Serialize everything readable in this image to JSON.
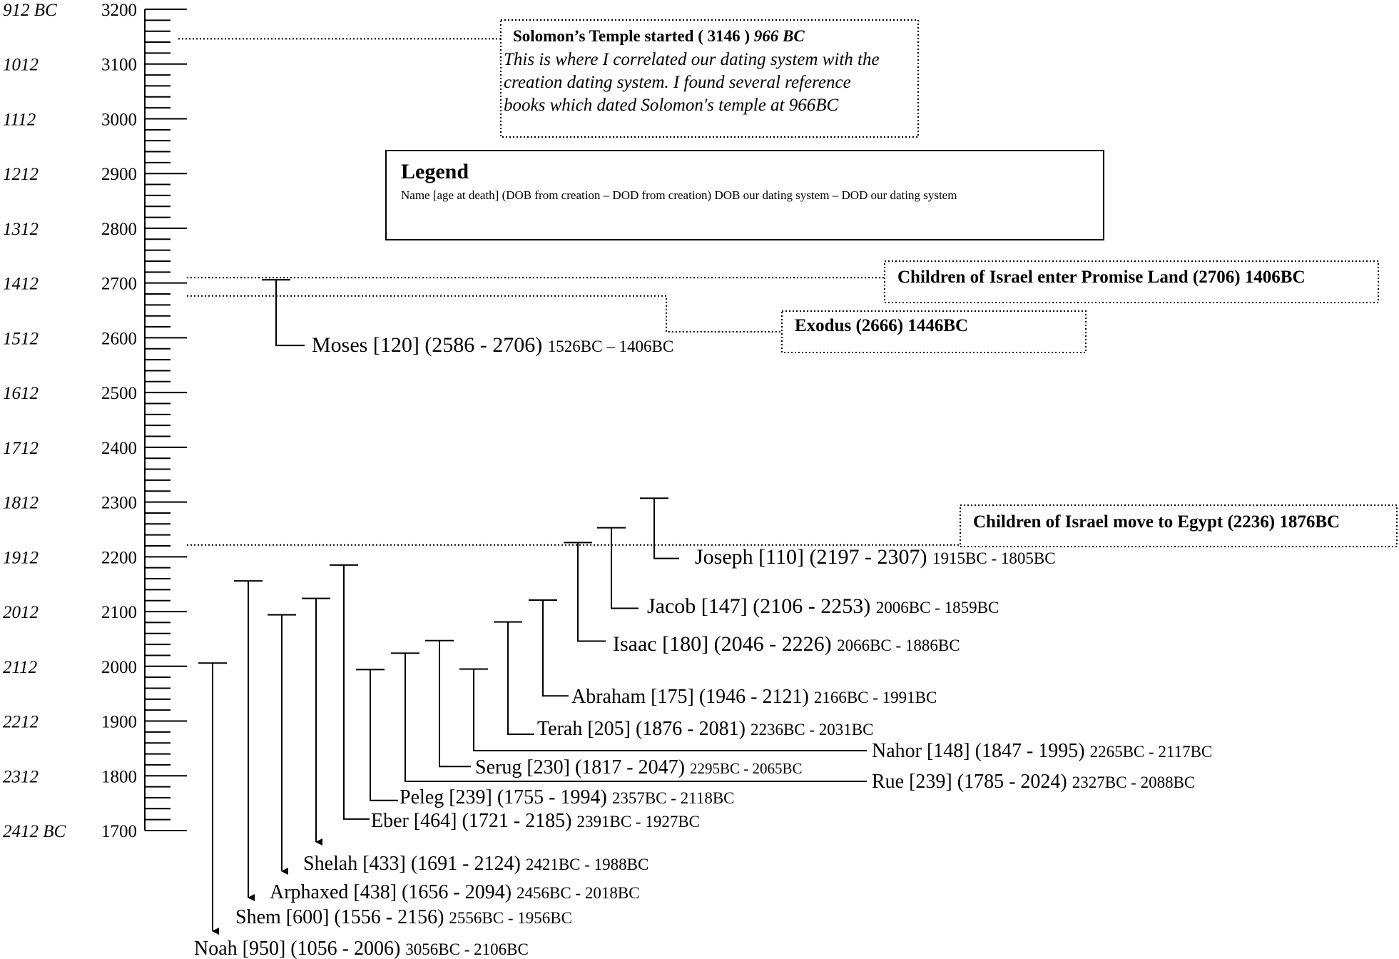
{
  "chart_data": {
    "type": "timeline",
    "axis": {
      "min": 1700,
      "max": 3200,
      "major_step": 100,
      "minor_per_major": 5,
      "creation_years": [
        "3200",
        "3100",
        "3000",
        "2900",
        "2800",
        "2700",
        "2600",
        "2500",
        "2400",
        "2300",
        "2200",
        "2100",
        "2000",
        "1900",
        "1800",
        "1700"
      ],
      "bc_years": [
        "912 BC",
        "1012",
        "1112",
        "1212",
        "1312",
        "1412",
        "1512",
        "1612",
        "1712",
        "1812",
        "1912",
        "2012",
        "2112",
        "2212",
        "2312",
        "2412 BC"
      ]
    },
    "people": [
      {
        "name": "Moses [120] (2586 - 2706)",
        "dates": "1526BC – 1406BC",
        "birth": 2586,
        "death": 2706
      },
      {
        "name": "Joseph [110] (2197 - 2307)",
        "dates": "1915BC  -  1805BC",
        "birth": 2197,
        "death": 2307
      },
      {
        "name": "Jacob [147] (2106 - 2253)",
        "dates": "2006BC  -  1859BC",
        "birth": 2106,
        "death": 2253
      },
      {
        "name": "Isaac [180] (2046 - 2226)",
        "dates": "2066BC  -  1886BC",
        "birth": 2046,
        "death": 2226
      },
      {
        "name": "Abraham [175] (1946 - 2121)",
        "dates": "2166BC  -  1991BC",
        "birth": 1946,
        "death": 2121
      },
      {
        "name": "Terah [205] (1876 - 2081)",
        "dates": "2236BC  -  2031BC",
        "birth": 1876,
        "death": 2081
      },
      {
        "name": "Nahor [148] (1847 - 1995)",
        "dates": "2265BC  -  2117BC",
        "birth": 1847,
        "death": 1995
      },
      {
        "name": "Serug [230] (1817 - 2047)",
        "dates": "2295BC -  2065BC",
        "birth": 1817,
        "death": 2047
      },
      {
        "name": "Rue [239] (1785 - 2024)",
        "dates": "2327BC  -  2088BC",
        "birth": 1785,
        "death": 2024
      },
      {
        "name": "Peleg [239] (1755 - 1994)",
        "dates": "2357BC  -  2118BC",
        "birth": 1755,
        "death": 1994
      },
      {
        "name": "Eber [464] (1721 - 2185)",
        "dates": "2391BC  -  1927BC",
        "birth": 1721,
        "death": 2185
      },
      {
        "name": "Shelah [433] (1691 - 2124)",
        "dates": "2421BC  -  1988BC",
        "birth": 1691,
        "death": 2124
      },
      {
        "name": "Arphaxed [438] (1656 - 2094)",
        "dates": "2456BC  -  2018BC",
        "birth": 1656,
        "death": 2094
      },
      {
        "name": "Shem [600] (1556 - 2156)",
        "dates": "2556BC  -  1956BC",
        "birth": 1556,
        "death": 2156
      },
      {
        "name": "Noah [950] (1056 - 2006)",
        "dates": "3056BC  -  2106BC",
        "birth": 1056,
        "death": 2006
      }
    ],
    "events": [
      {
        "title": "Solomon’s Temple started  ( 3146 )",
        "title_bc": "966 BC",
        "year": 3146,
        "note_lines": [
          "This is where I correlated our dating system with the",
          "creation dating system. I found several reference",
          "books which dated Solomon's temple at 966BC"
        ]
      },
      {
        "title": "Children of Israel enter Promise Land  (2706)  1406BC",
        "year": 2706
      },
      {
        "title": "Exodus (2666)  1446BC",
        "year": 2666
      },
      {
        "title": "Children of Israel move to Egypt (2236)  1876BC",
        "year": 2236
      }
    ],
    "legend": {
      "title": "Legend",
      "text": "Name [age at death] (DOB from creation – DOD from creation)  DOB our dating system – DOD our dating system"
    }
  }
}
